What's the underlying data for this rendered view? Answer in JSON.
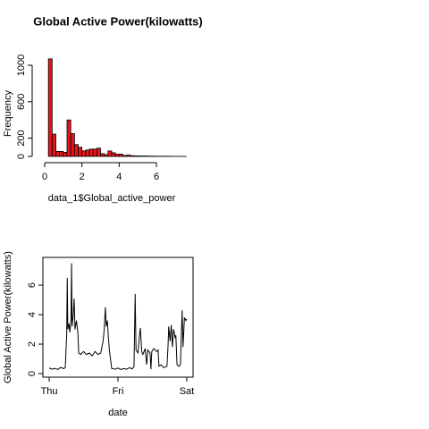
{
  "chart_data": [
    {
      "type": "histogram",
      "title": "Global Active Power(kilowatts)",
      "x_label": "data_1$Global_active_power",
      "y_label": "Frequency",
      "color": "#e8141c",
      "bins": [
        0.2,
        0.4,
        0.6,
        0.8,
        1.0,
        1.2,
        1.4,
        1.6,
        1.8,
        2.0,
        2.2,
        2.4,
        2.6,
        2.8,
        3.0,
        3.2,
        3.4,
        3.6,
        3.8,
        4.0,
        4.2,
        4.4,
        4.6,
        4.8,
        5.0,
        5.2,
        5.4,
        5.6,
        5.8,
        6.0,
        6.2,
        6.4,
        6.6,
        6.8,
        7.0,
        7.2,
        7.4,
        7.6
      ],
      "values": [
        1070,
        245,
        55,
        55,
        45,
        400,
        250,
        130,
        100,
        60,
        70,
        80,
        80,
        90,
        30,
        20,
        60,
        40,
        25,
        25,
        10,
        15,
        8,
        6,
        5,
        5,
        4,
        3,
        3,
        2,
        2,
        2,
        2,
        1,
        1,
        1,
        1
      ],
      "xlim": [
        -0.3,
        7.9
      ],
      "ylim": [
        -45,
        1170
      ],
      "xticks": [
        0,
        2,
        4,
        6
      ],
      "yticks": [
        0,
        200,
        600,
        1000
      ]
    },
    {
      "type": "line",
      "x_label": "date",
      "y_label": "Global Active Power(kilowatts)",
      "color": "#000000",
      "x": [
        0,
        1,
        2,
        3,
        4,
        5,
        5.6,
        5.8,
        6.1,
        6.3,
        6.5,
        6.9,
        7.2,
        7.6,
        7.8,
        8.0,
        8.4,
        8.7,
        9.0,
        9.5,
        10.0,
        10.3,
        11,
        12,
        13,
        14,
        15,
        16,
        17,
        18,
        18.8,
        19.2,
        19.6,
        19.9,
        20.3,
        20.6,
        21.0,
        21.8,
        23,
        24,
        25,
        26,
        27,
        28,
        29,
        29.6,
        30.0,
        30.3,
        31,
        31.5,
        31.8,
        32.3,
        32.7,
        33.5,
        34,
        34.4,
        35.2,
        35.5,
        35.8,
        36.5,
        37.5,
        38,
        38.3,
        39,
        40,
        41.1,
        41.5,
        41.7,
        42.2,
        42.6,
        43,
        43.4,
        44.0,
        44.2,
        44.6,
        45.3,
        45.8,
        46.1,
        46.4,
        46.7,
        47.2,
        47.7,
        48
      ],
      "values": [
        0.38,
        0.3,
        0.36,
        0.28,
        0.42,
        0.34,
        0.4,
        1.3,
        2.6,
        6.5,
        3.0,
        3.4,
        2.8,
        3.6,
        7.48,
        3.2,
        4.0,
        5.1,
        3.0,
        3.6,
        2.8,
        1.4,
        1.3,
        1.5,
        1.3,
        1.4,
        1.2,
        1.5,
        1.3,
        1.4,
        2.2,
        3.0,
        4.5,
        3.2,
        3.6,
        2.6,
        1.6,
        0.35,
        0.3,
        0.38,
        0.28,
        0.34,
        0.3,
        0.4,
        0.32,
        0.5,
        5.4,
        1.6,
        1.4,
        2.6,
        3.1,
        1.5,
        1.3,
        1.7,
        0.6,
        1.6,
        1.4,
        0.3,
        1.5,
        1.7,
        1.5,
        1.6,
        0.5,
        0.6,
        0.4,
        0.5,
        2.0,
        3.2,
        2.2,
        3.3,
        1.8,
        3.0,
        2.4,
        2.6,
        0.6,
        0.5,
        0.6,
        2.5,
        4.3,
        1.8,
        3.8,
        3.6,
        3.7
      ],
      "xlim": [
        -2.2,
        50.2
      ],
      "ylim": [
        -0.24,
        7.88
      ],
      "xticks": [
        {
          "value": 0,
          "label": "Thu"
        },
        {
          "value": 24,
          "label": "Fri"
        },
        {
          "value": 48,
          "label": "Sat"
        }
      ],
      "yticks": [
        0,
        2,
        4,
        6
      ]
    }
  ]
}
